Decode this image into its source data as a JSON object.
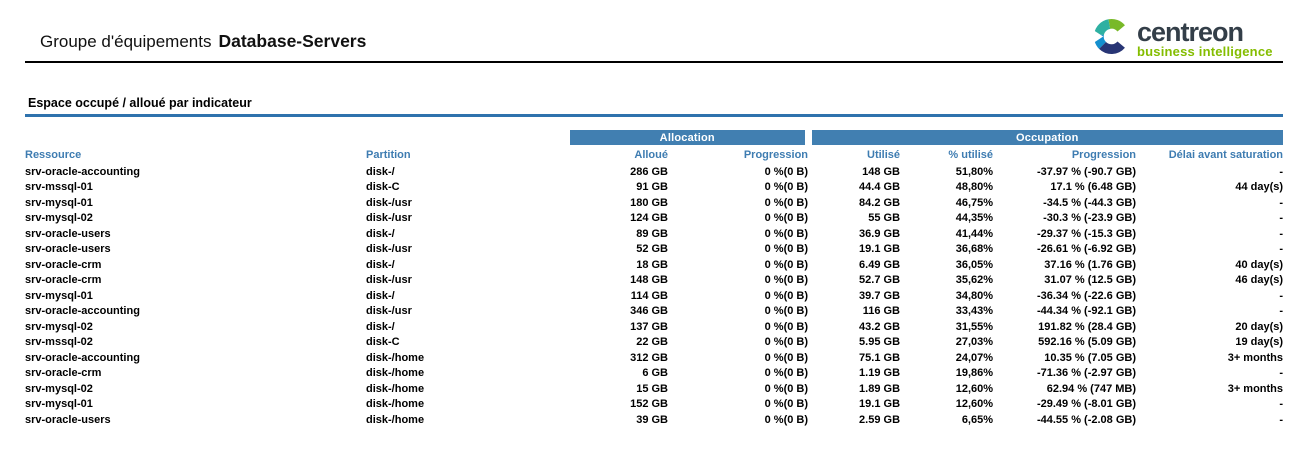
{
  "header": {
    "title_label": "Groupe d'équipements",
    "title_value": "Database-Servers",
    "logo": {
      "brand": "centreon",
      "tagline": "business intelligence",
      "brand_color": "#333e48",
      "tagline_color": "#84bd00",
      "mark_icon": "centreon-c-mark",
      "mark_colors": {
        "green": "#79b928",
        "teal": "#2eb0a2",
        "cyan": "#148fce",
        "navy": "#283575"
      }
    }
  },
  "section": {
    "title": "Espace occupé / alloué par indicateur",
    "rule_color": "#2f72ad"
  },
  "table": {
    "band_color": "#417fb1",
    "header_text_color": "#3e7cb1",
    "groups": [
      {
        "label": "Allocation"
      },
      {
        "label": "Occupation"
      }
    ],
    "columns": [
      "Ressource",
      "Partition",
      "Alloué",
      "Progression",
      "Utilisé",
      "% utilisé",
      "Progression",
      "Délai avant saturation"
    ],
    "rows": [
      [
        "srv-oracle-accounting",
        "disk-/",
        "286 GB",
        "0 %(0 B)",
        "148 GB",
        "51,80%",
        "-37.97 % (-90.7 GB)",
        "-"
      ],
      [
        "srv-mssql-01",
        "disk-C",
        "91 GB",
        "0 %(0 B)",
        "44.4 GB",
        "48,80%",
        "17.1 % (6.48 GB)",
        "44 day(s)"
      ],
      [
        "srv-mysql-01",
        "disk-/usr",
        "180 GB",
        "0 %(0 B)",
        "84.2 GB",
        "46,75%",
        "-34.5 % (-44.3 GB)",
        "-"
      ],
      [
        "srv-mysql-02",
        "disk-/usr",
        "124 GB",
        "0 %(0 B)",
        "55 GB",
        "44,35%",
        "-30.3 % (-23.9 GB)",
        "-"
      ],
      [
        "srv-oracle-users",
        "disk-/",
        "89 GB",
        "0 %(0 B)",
        "36.9 GB",
        "41,44%",
        "-29.37 % (-15.3 GB)",
        "-"
      ],
      [
        "srv-oracle-users",
        "disk-/usr",
        "52 GB",
        "0 %(0 B)",
        "19.1 GB",
        "36,68%",
        "-26.61 % (-6.92 GB)",
        "-"
      ],
      [
        "srv-oracle-crm",
        "disk-/",
        "18 GB",
        "0 %(0 B)",
        "6.49 GB",
        "36,05%",
        "37.16 % (1.76 GB)",
        "40 day(s)"
      ],
      [
        "srv-oracle-crm",
        "disk-/usr",
        "148 GB",
        "0 %(0 B)",
        "52.7 GB",
        "35,62%",
        "31.07 % (12.5 GB)",
        "46 day(s)"
      ],
      [
        "srv-mysql-01",
        "disk-/",
        "114 GB",
        "0 %(0 B)",
        "39.7 GB",
        "34,80%",
        "-36.34 % (-22.6 GB)",
        "-"
      ],
      [
        "srv-oracle-accounting",
        "disk-/usr",
        "346 GB",
        "0 %(0 B)",
        "116 GB",
        "33,43%",
        "-44.34 % (-92.1 GB)",
        "-"
      ],
      [
        "srv-mysql-02",
        "disk-/",
        "137 GB",
        "0 %(0 B)",
        "43.2 GB",
        "31,55%",
        "191.82 % (28.4 GB)",
        "20 day(s)"
      ],
      [
        "srv-mssql-02",
        "disk-C",
        "22 GB",
        "0 %(0 B)",
        "5.95 GB",
        "27,03%",
        "592.16 % (5.09 GB)",
        "19 day(s)"
      ],
      [
        "srv-oracle-accounting",
        "disk-/home",
        "312 GB",
        "0 %(0 B)",
        "75.1 GB",
        "24,07%",
        "10.35 % (7.05 GB)",
        "3+ months"
      ],
      [
        "srv-oracle-crm",
        "disk-/home",
        "6 GB",
        "0 %(0 B)",
        "1.19 GB",
        "19,86%",
        "-71.36 % (-2.97 GB)",
        "-"
      ],
      [
        "srv-mysql-02",
        "disk-/home",
        "15 GB",
        "0 %(0 B)",
        "1.89 GB",
        "12,60%",
        "62.94 % (747 MB)",
        "3+ months"
      ],
      [
        "srv-mysql-01",
        "disk-/home",
        "152 GB",
        "0 %(0 B)",
        "19.1 GB",
        "12,60%",
        "-29.49 % (-8.01 GB)",
        "-"
      ],
      [
        "srv-oracle-users",
        "disk-/home",
        "39 GB",
        "0 %(0 B)",
        "2.59 GB",
        "6,65%",
        "-44.55 % (-2.08 GB)",
        "-"
      ]
    ]
  }
}
